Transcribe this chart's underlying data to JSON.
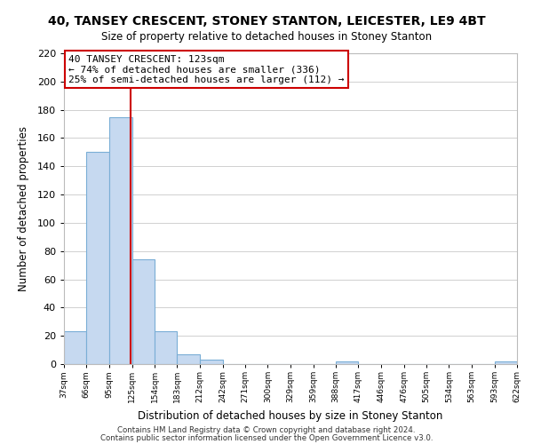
{
  "title1": "40, TANSEY CRESCENT, STONEY STANTON, LEICESTER, LE9 4BT",
  "title2": "Size of property relative to detached houses in Stoney Stanton",
  "xlabel": "Distribution of detached houses by size in Stoney Stanton",
  "ylabel": "Number of detached properties",
  "bin_edges": [
    37,
    66,
    95,
    125,
    154,
    183,
    212,
    242,
    271,
    300,
    329,
    359,
    388,
    417,
    446,
    476,
    505,
    534,
    563,
    593,
    622
  ],
  "bar_heights": [
    23,
    150,
    175,
    74,
    23,
    7,
    3,
    0,
    0,
    0,
    0,
    0,
    2,
    0,
    0,
    0,
    0,
    0,
    0,
    2
  ],
  "bar_color": "#c6d9f0",
  "bar_edge_color": "#7aaed6",
  "vline_x": 123,
  "vline_color": "#cc0000",
  "annotation_title": "40 TANSEY CRESCENT: 123sqm",
  "annotation_line1": "← 74% of detached houses are smaller (336)",
  "annotation_line2": "25% of semi-detached houses are larger (112) →",
  "ylim": [
    0,
    220
  ],
  "yticks": [
    0,
    20,
    40,
    60,
    80,
    100,
    120,
    140,
    160,
    180,
    200,
    220
  ],
  "tick_labels": [
    "37sqm",
    "66sqm",
    "95sqm",
    "125sqm",
    "154sqm",
    "183sqm",
    "212sqm",
    "242sqm",
    "271sqm",
    "300sqm",
    "329sqm",
    "359sqm",
    "388sqm",
    "417sqm",
    "446sqm",
    "476sqm",
    "505sqm",
    "534sqm",
    "563sqm",
    "593sqm",
    "622sqm"
  ],
  "footer1": "Contains HM Land Registry data © Crown copyright and database right 2024.",
  "footer2": "Contains public sector information licensed under the Open Government Licence v3.0.",
  "background_color": "#ffffff",
  "grid_color": "#d0d0d0"
}
